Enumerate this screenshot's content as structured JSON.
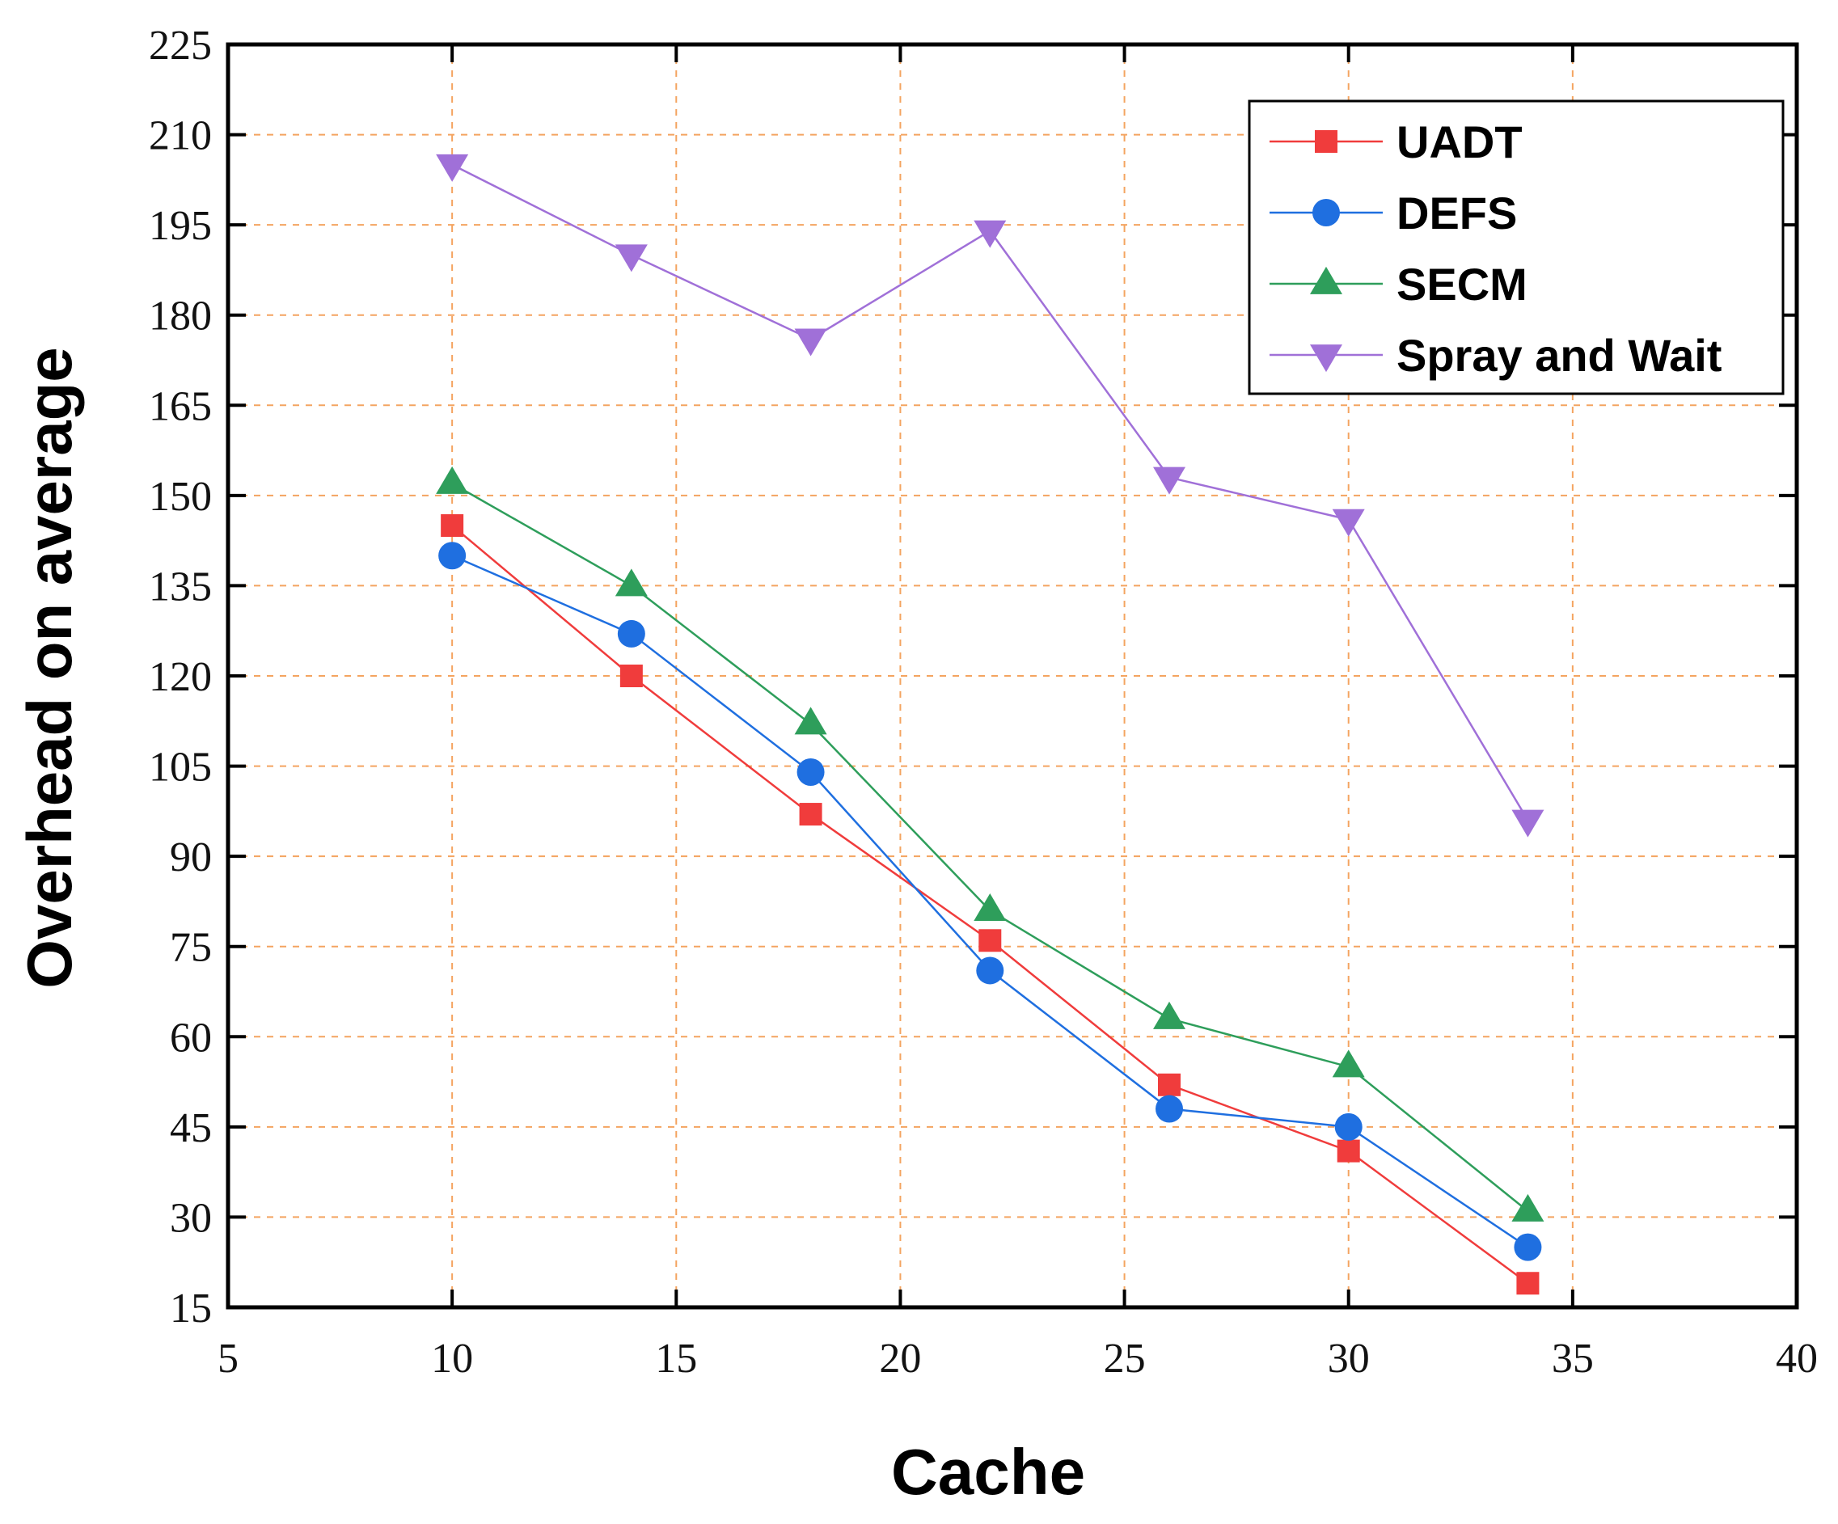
{
  "chart_data": {
    "type": "line",
    "title": "",
    "xlabel": "Cache",
    "ylabel": "Overhead on average",
    "xlim": [
      5,
      40
    ],
    "ylim": [
      15,
      225
    ],
    "xticks": [
      5,
      10,
      15,
      20,
      25,
      30,
      35,
      40
    ],
    "yticks": [
      15,
      30,
      45,
      60,
      75,
      90,
      105,
      120,
      135,
      150,
      165,
      180,
      195,
      210,
      225
    ],
    "grid": true,
    "legend_position": "top-right",
    "x": [
      10,
      14,
      18,
      22,
      26,
      30,
      34
    ],
    "series": [
      {
        "name": "UADT",
        "marker": "square",
        "color": "#f03c3c",
        "values": [
          145,
          120,
          97,
          76,
          52,
          41,
          19
        ]
      },
      {
        "name": "DEFS",
        "marker": "circle",
        "color": "#1f6fe0",
        "values": [
          140,
          127,
          104,
          71,
          48,
          45,
          25
        ]
      },
      {
        "name": "SECM",
        "marker": "triangle-up",
        "color": "#2e9e5b",
        "values": [
          152,
          135,
          112,
          81,
          63,
          55,
          31
        ]
      },
      {
        "name": "Spray and Wait",
        "marker": "triangle-down",
        "color": "#a070d8",
        "values": [
          205,
          190,
          176,
          194,
          153,
          146,
          96
        ]
      }
    ],
    "grid_color": "#f4a460"
  }
}
